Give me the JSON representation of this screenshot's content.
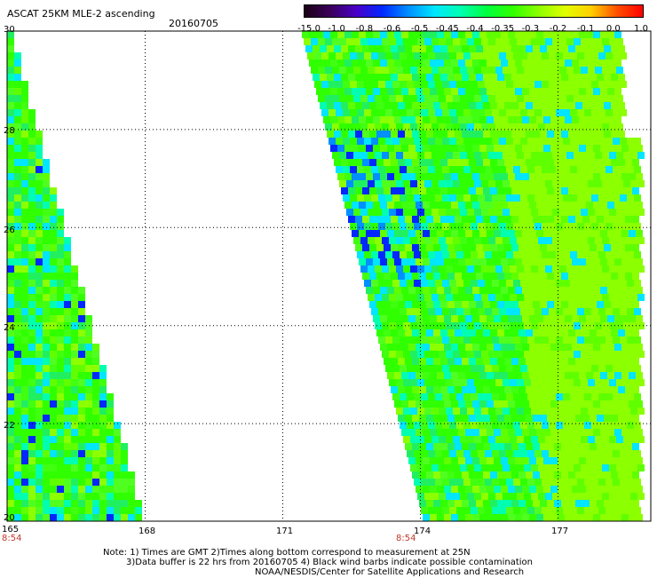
{
  "header": {
    "title": "ASCAT 25KM MLE-2 ascending",
    "date": "20160705"
  },
  "colorbar": {
    "labels": [
      "-15.0",
      "-1.0",
      "-0.8",
      "-0.6",
      "-0.5",
      "-0.45",
      "-0.4",
      "-0.35",
      "-0.3",
      "-0.2",
      "-0.1",
      "0.0",
      "1.0"
    ],
    "colors": [
      "#1a0014",
      "#3b005a",
      "#4a00c8",
      "#0028ff",
      "#0090ff",
      "#00e6ff",
      "#00ffb0",
      "#00ff40",
      "#30ff00",
      "#8cff00",
      "#e0ff00",
      "#ffd000",
      "#ff5000",
      "#ff0000"
    ]
  },
  "axes": {
    "lat_labels": [
      "30",
      "28",
      "26",
      "24",
      "22",
      "20"
    ],
    "lon_labels": [
      "165",
      "168",
      "171",
      "174",
      "177"
    ],
    "time_labels": [
      "8:54",
      "8:54"
    ]
  },
  "notes": {
    "line1": "Note: 1) Times are GMT 2)Times along bottom correspond to measurement at 25N",
    "line2": "3)Data buffer is 22 hrs from 20160705 4) Black wind barbs indicate possible contamination",
    "line3": "NOAA/NESDIS/Center for Satellite Applications and Research"
  }
}
